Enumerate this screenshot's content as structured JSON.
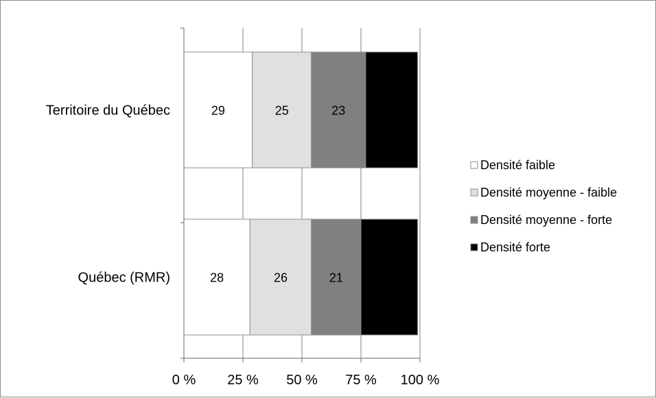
{
  "chart_data": {
    "type": "bar",
    "orientation": "horizontal",
    "stacked": true,
    "percent": true,
    "categories": [
      "Territoire du Québec",
      "Québec (RMR)"
    ],
    "series": [
      {
        "name": "Densité faible",
        "values": [
          29,
          28
        ],
        "color": "#ffffff",
        "label_color": "#000000"
      },
      {
        "name": "Densité moyenne - faible",
        "values": [
          25,
          26
        ],
        "color": "#e0e0e0",
        "label_color": "#000000"
      },
      {
        "name": "Densité moyenne - forte",
        "values": [
          23,
          21
        ],
        "color": "#808080",
        "label_color": "#ffffff"
      },
      {
        "name": "Densité forte",
        "values": [
          22,
          24
        ],
        "color": "#000000",
        "label_color": "#ffffff"
      }
    ],
    "xticks": [
      "0 %",
      "25 %",
      "50 %",
      "75 %",
      "100 %"
    ],
    "xlim": [
      0,
      100
    ],
    "grid": true,
    "legend": "right"
  }
}
